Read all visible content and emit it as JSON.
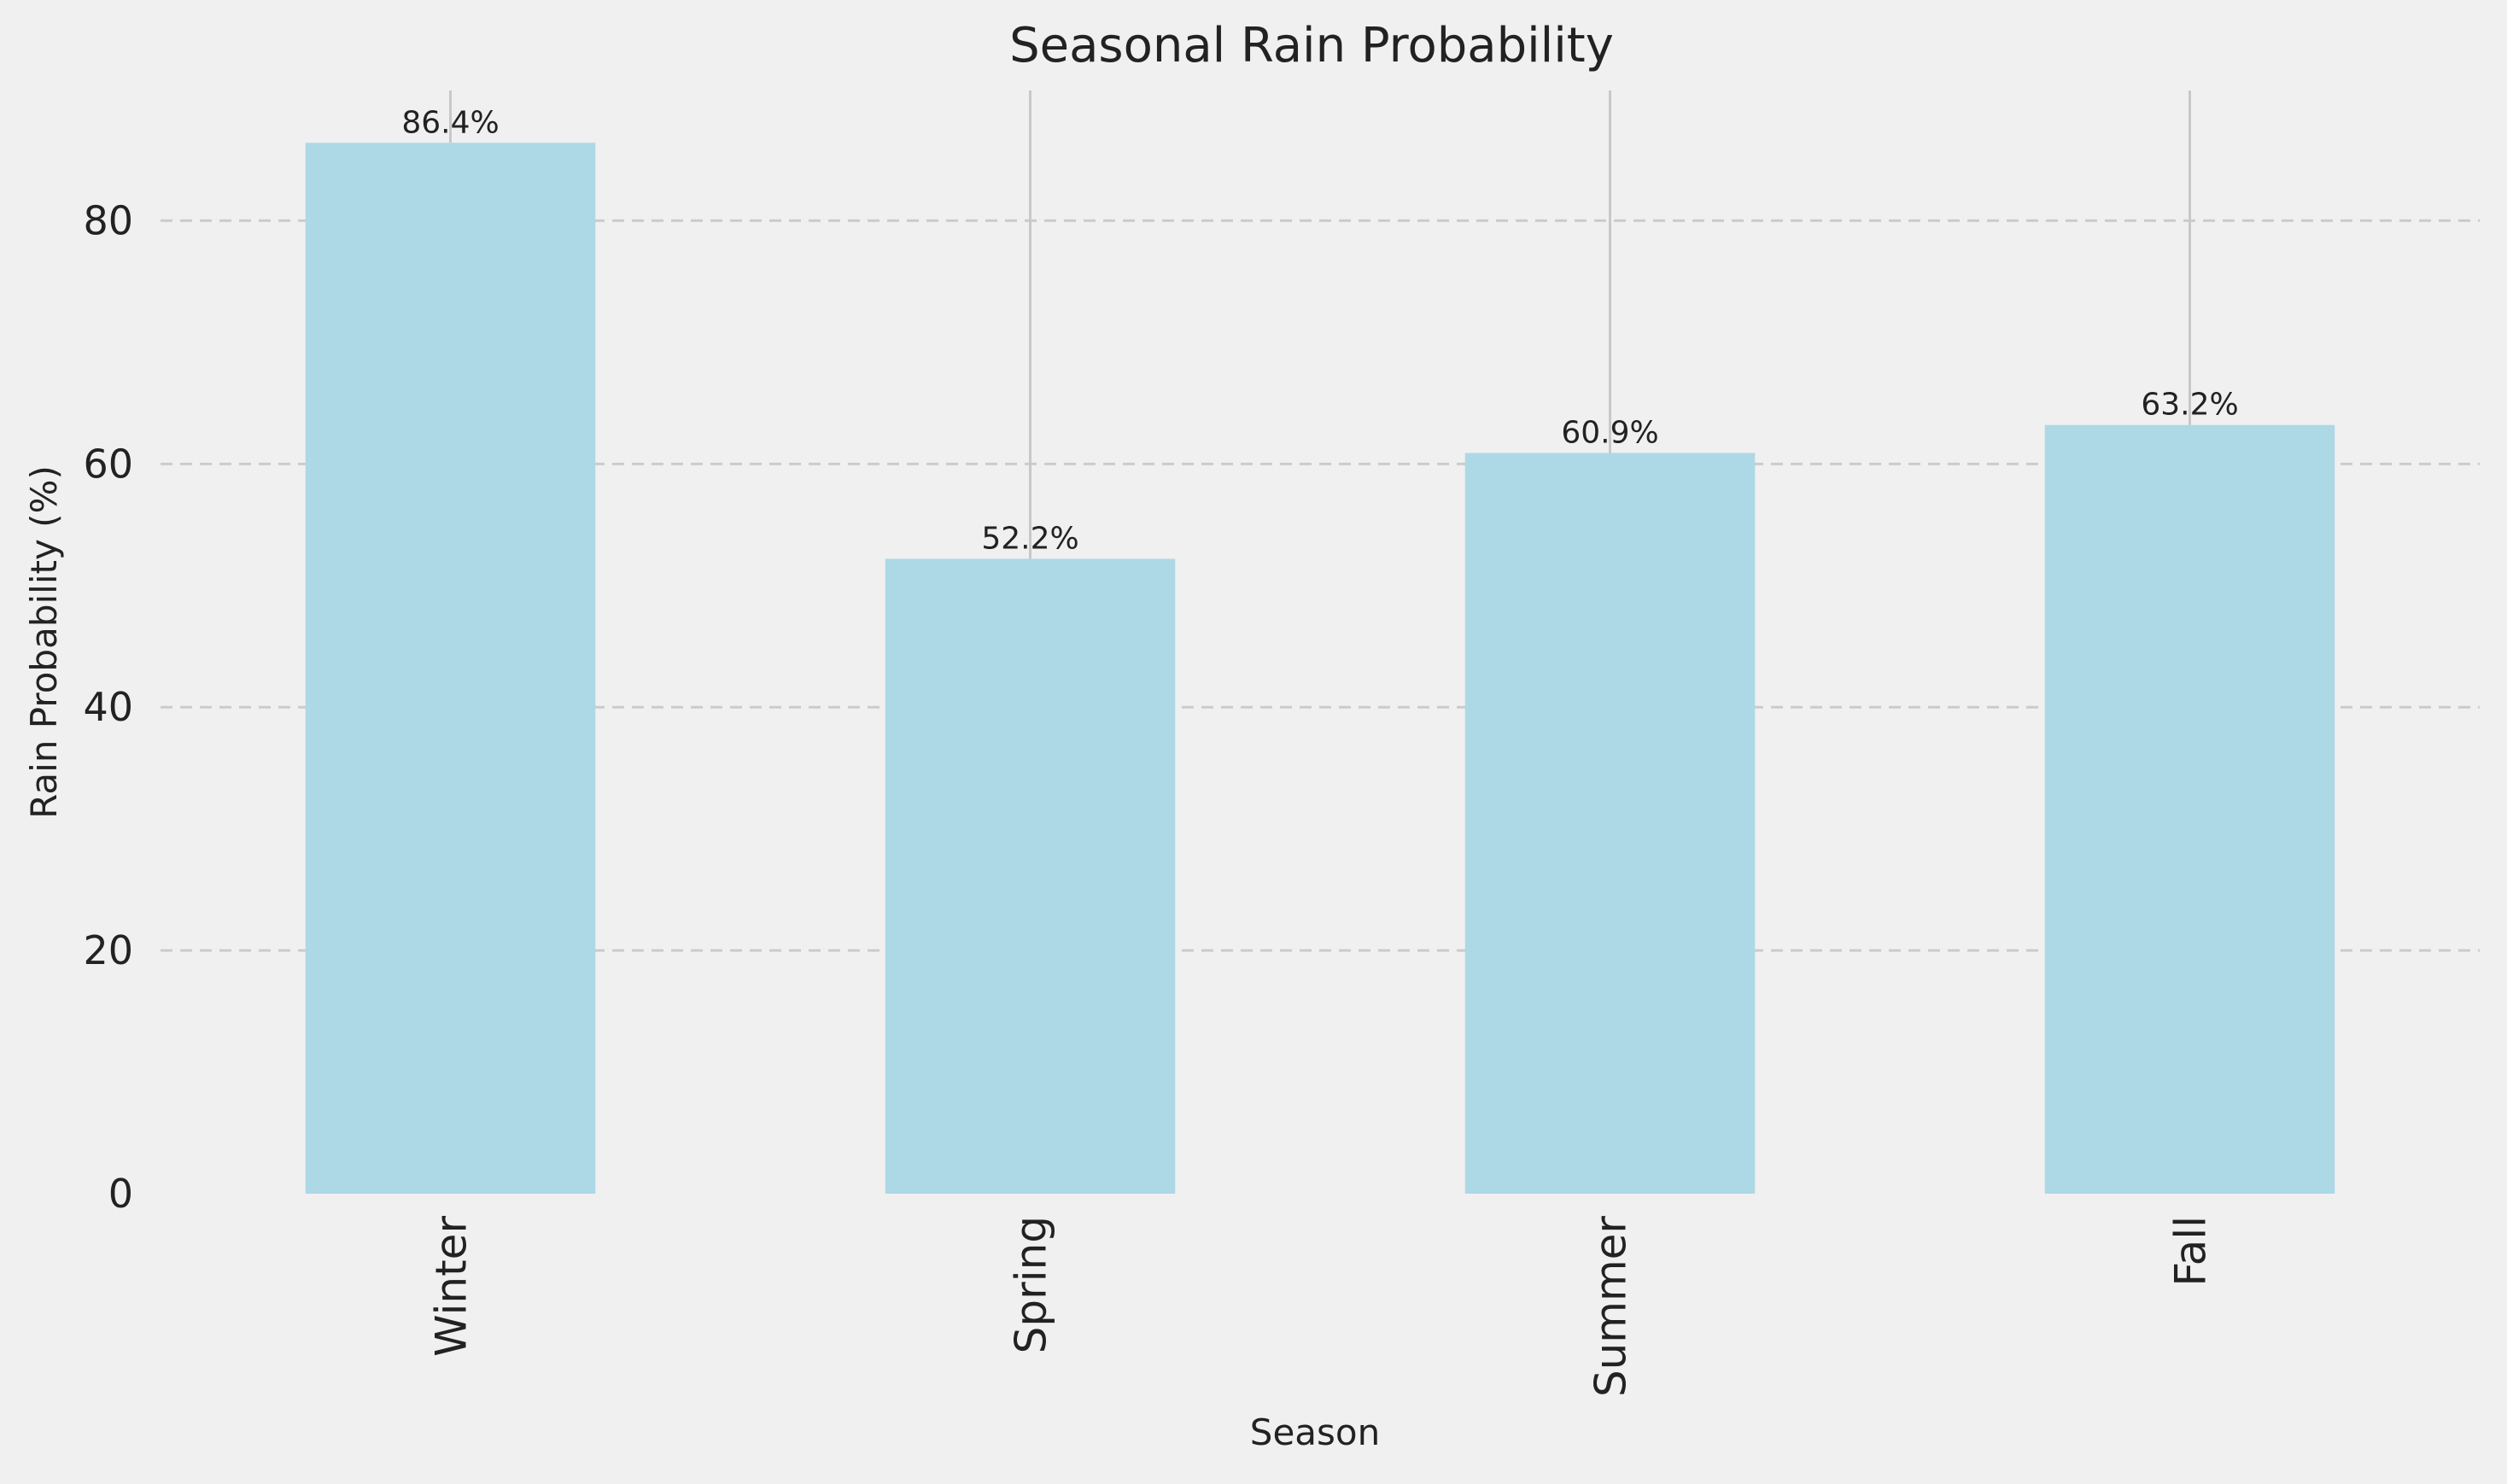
{
  "chart_data": {
    "type": "bar",
    "title": "Seasonal Rain Probability",
    "xlabel": "Season",
    "ylabel": "Rain Probability (%)",
    "categories": [
      "Winter",
      "Spring",
      "Summer",
      "Fall"
    ],
    "values": [
      86.4,
      52.2,
      60.9,
      63.2
    ],
    "data_labels": [
      "86.4%",
      "52.2%",
      "60.9%",
      "63.2%"
    ],
    "ylim": [
      0,
      90.7
    ],
    "yticks": [
      0,
      20,
      40,
      60,
      80
    ],
    "ytick_labels": [
      "0",
      "20",
      "40",
      "60",
      "80"
    ],
    "grid": "y-dashed",
    "bar_color": "#add8e6",
    "background_color": "#f0f0f0",
    "grid_color": "#cbcbcb",
    "error_line_color": "#c8c8c8"
  }
}
